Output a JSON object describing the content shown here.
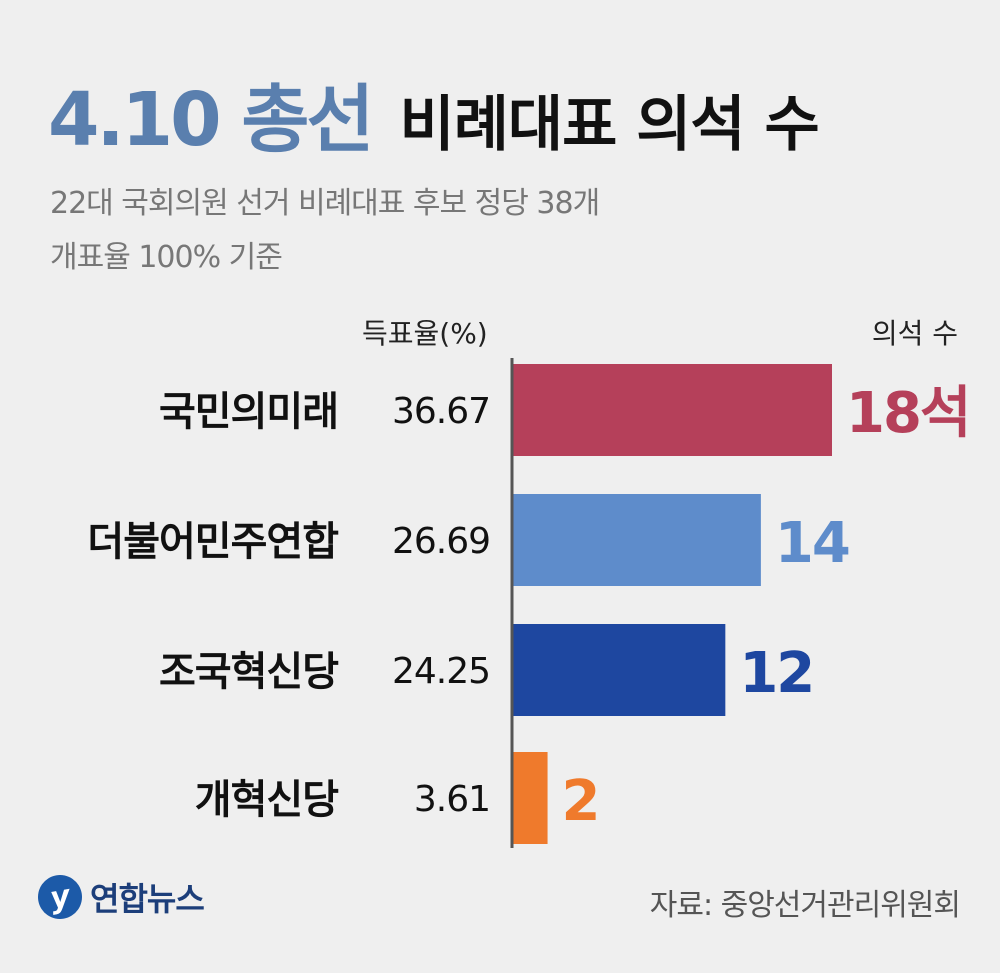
{
  "title": {
    "accent": "4.10 총선",
    "main": "비례대표 의석 수"
  },
  "subtitle": {
    "line1": "22대 국회의원 선거 비례대표 후보 정당 38개",
    "line2": "개표율 100% 기준"
  },
  "chart_data": {
    "type": "bar",
    "orientation": "horizontal",
    "rate_header": "득표율(%)",
    "seat_header": "의석 수",
    "categories": [
      "국민의미래",
      "더불어민주연합",
      "조국혁신당",
      "개혁신당"
    ],
    "vote_rates": [
      "36.67",
      "26.69",
      "24.25",
      "3.61"
    ],
    "seats": [
      18,
      14,
      12,
      2
    ],
    "seat_labels": [
      "18석",
      "14",
      "12",
      "2"
    ],
    "colors": [
      "#b5405a",
      "#5e8ccb",
      "#1e47a0",
      "#ef7a2c"
    ],
    "grid": false
  },
  "footer": {
    "logo_mark": "y",
    "logo_text": "연합뉴스",
    "source": "자료: 중앙선거관리위원회"
  }
}
